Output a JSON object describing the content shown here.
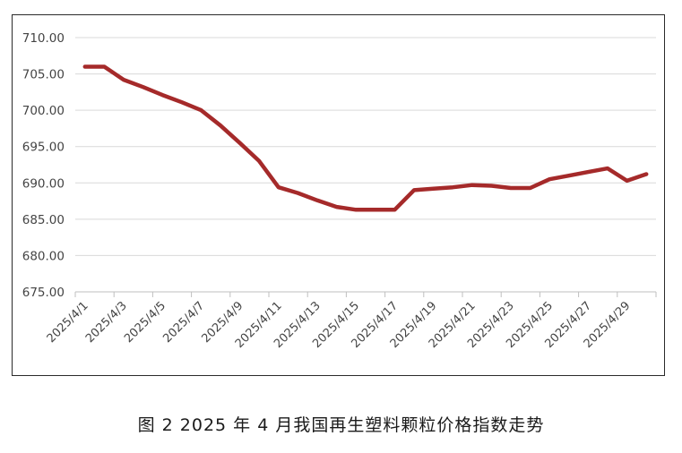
{
  "chart_data": {
    "type": "line",
    "xlabel": "",
    "ylabel": "",
    "ylim": [
      675,
      710
    ],
    "yticks": [
      "675.00",
      "680.00",
      "685.00",
      "690.00",
      "695.00",
      "700.00",
      "705.00",
      "710.00"
    ],
    "x_tick_labels": [
      "2025/4/1",
      "2025/4/3",
      "2025/4/5",
      "2025/4/7",
      "2025/4/9",
      "2025/4/11",
      "2025/4/13",
      "2025/4/15",
      "2025/4/17",
      "2025/4/19",
      "2025/4/21",
      "2025/4/23",
      "2025/4/25",
      "2025/4/27",
      "2025/4/29"
    ],
    "grid": true,
    "legend": "none",
    "series": [
      {
        "color": "#a52a2a",
        "x": [
          "2025/4/1",
          "2025/4/2",
          "2025/4/3",
          "2025/4/4",
          "2025/4/5",
          "2025/4/6",
          "2025/4/7",
          "2025/4/8",
          "2025/4/9",
          "2025/4/10",
          "2025/4/11",
          "2025/4/12",
          "2025/4/13",
          "2025/4/14",
          "2025/4/15",
          "2025/4/16",
          "2025/4/17",
          "2025/4/18",
          "2025/4/19",
          "2025/4/20",
          "2025/4/21",
          "2025/4/22",
          "2025/4/23",
          "2025/4/24",
          "2025/4/25",
          "2025/4/26",
          "2025/4/27",
          "2025/4/28",
          "2025/4/29",
          "2025/4/30"
        ],
        "values": [
          706.0,
          706.0,
          704.2,
          703.2,
          702.1,
          701.1,
          700.0,
          697.9,
          695.5,
          693.0,
          689.4,
          688.6,
          687.6,
          686.7,
          686.3,
          686.3,
          686.3,
          689.0,
          689.2,
          689.4,
          689.7,
          689.6,
          689.3,
          689.3,
          690.5,
          691.0,
          691.5,
          692.0,
          690.3,
          691.2
        ]
      }
    ]
  },
  "caption": "图 2  2025 年 4 月我国再生塑料颗粒价格指数走势"
}
